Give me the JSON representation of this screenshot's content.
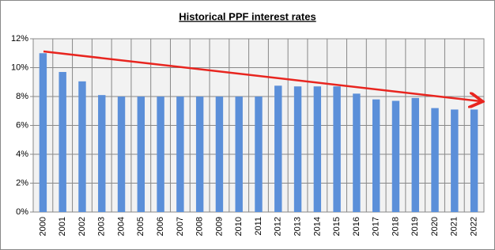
{
  "chart_data": {
    "type": "bar",
    "title": "Historical PPF interest rates",
    "categories": [
      "2000",
      "2001",
      "2002",
      "2003",
      "2004",
      "2005",
      "2006",
      "2007",
      "2008",
      "2009",
      "2010",
      "2011",
      "2012",
      "2013",
      "2014",
      "2015",
      "2016",
      "2017",
      "2018",
      "2019",
      "2020",
      "2021",
      "2022"
    ],
    "values": [
      11,
      9.7,
      9.05,
      8.1,
      8,
      8,
      8,
      8,
      8,
      8,
      8,
      8,
      8.75,
      8.7,
      8.7,
      8.7,
      8.2,
      7.8,
      7.7,
      7.9,
      7.2,
      7.1,
      7.1
    ],
    "color": "#5b8fd9",
    "ylim": [
      0,
      12
    ],
    "yticks": [
      {
        "value": 0,
        "label": "0%"
      },
      {
        "value": 2,
        "label": "2%"
      },
      {
        "value": 4,
        "label": "4%"
      },
      {
        "value": 6,
        "label": "6%"
      },
      {
        "value": 8,
        "label": "8%"
      },
      {
        "value": 10,
        "label": "10%"
      },
      {
        "value": 12,
        "label": "12%"
      }
    ],
    "grid": true
  }
}
